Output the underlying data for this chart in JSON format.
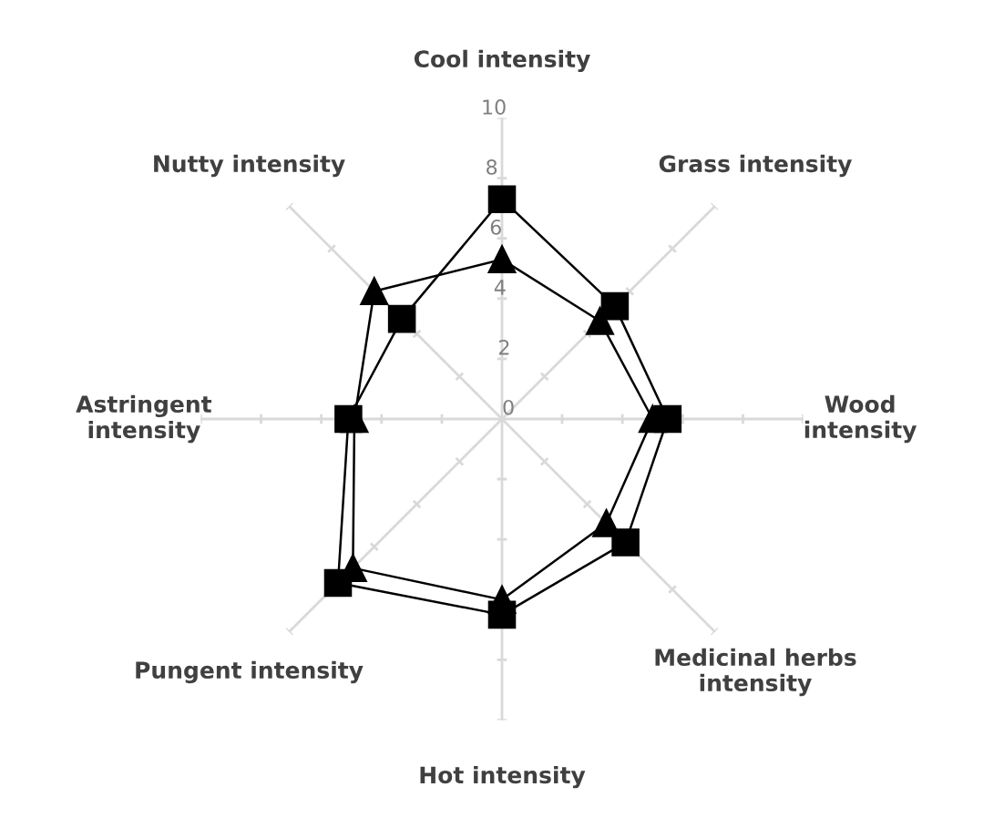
{
  "chart_data": {
    "type": "radar",
    "categories": [
      "Cool intensity",
      "Grass intensity",
      "Wood\nintensity",
      "Medicinal herbs\nintensity",
      "Hot intensity",
      "Pungent intensity",
      "Astringent\nintensity",
      "Nutty intensity"
    ],
    "series": [
      {
        "color": "#000000",
        "marker": "square",
        "values": [
          7.3,
          5.3,
          5.5,
          5.8,
          6.5,
          7.7,
          5.1,
          4.7
        ]
      },
      {
        "color": "#000000",
        "marker": "triangle",
        "values": [
          5.3,
          4.6,
          5.0,
          4.9,
          6.0,
          7.0,
          4.9,
          6.0
        ]
      }
    ],
    "ylim": [
      0,
      10
    ],
    "yticks": [
      0,
      2,
      4,
      6,
      8,
      10
    ],
    "grid": "x",
    "legend": false
  }
}
